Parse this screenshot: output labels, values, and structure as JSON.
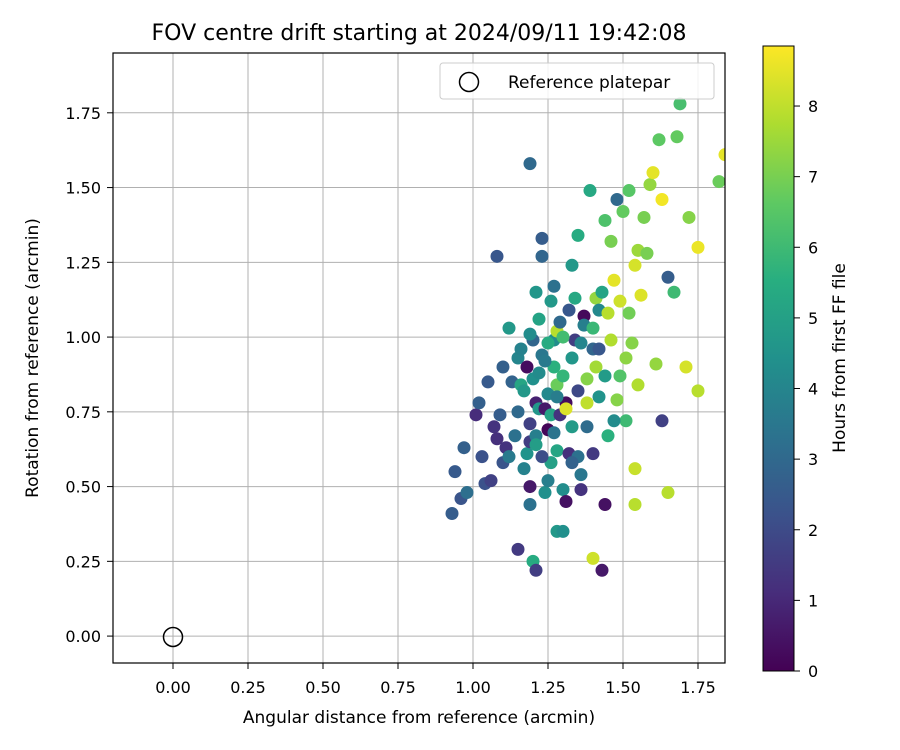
{
  "chart_data": {
    "type": "scatter",
    "title": "FOV centre drift starting at 2024/09/11 19:42:08",
    "xlabel": "Angular distance from reference (arcmin)",
    "ylabel": "Rotation from reference (arcmin)",
    "xlim": [
      -0.2,
      1.84
    ],
    "ylim": [
      -0.09,
      1.95
    ],
    "x_ticks": [
      "0.00",
      "0.25",
      "0.50",
      "0.75",
      "1.00",
      "1.25",
      "1.50",
      "1.75"
    ],
    "y_ticks": [
      "0.00",
      "0.25",
      "0.50",
      "0.75",
      "1.00",
      "1.25",
      "1.50",
      "1.75"
    ],
    "grid": true,
    "legend": {
      "position": "top-right",
      "entries": [
        "Reference platepar"
      ]
    },
    "reference_point": {
      "x": 0.0,
      "y": 0.0,
      "marker": "open-circle"
    },
    "colorbar": {
      "label": "Hours from first FF file",
      "colormap": "viridis",
      "min": 0,
      "max": 8.85,
      "ticks": [
        "0",
        "1",
        "2",
        "3",
        "4",
        "5",
        "6",
        "7",
        "8"
      ]
    },
    "series": [
      {
        "points": [
          [
            0.93,
            0.41,
            2.6
          ],
          [
            0.94,
            0.55,
            2.5
          ],
          [
            0.96,
            0.46,
            2.3
          ],
          [
            0.97,
            0.63,
            2.7
          ],
          [
            0.98,
            0.48,
            3.2
          ],
          [
            1.01,
            0.74,
            1.1
          ],
          [
            1.02,
            0.78,
            2.7
          ],
          [
            1.03,
            0.6,
            2.2
          ],
          [
            1.04,
            0.51,
            2.2
          ],
          [
            1.05,
            0.85,
            2.5
          ],
          [
            1.06,
            0.52,
            1.7
          ],
          [
            1.07,
            0.7,
            1.3
          ],
          [
            1.08,
            0.66,
            1.2
          ],
          [
            1.08,
            1.27,
            2.4
          ],
          [
            1.09,
            0.74,
            2.6
          ],
          [
            1.1,
            0.9,
            2.7
          ],
          [
            1.1,
            0.58,
            2.3
          ],
          [
            1.11,
            0.63,
            1.3
          ],
          [
            1.12,
            0.6,
            3.6
          ],
          [
            1.12,
            1.03,
            4.7
          ],
          [
            1.13,
            0.85,
            2.8
          ],
          [
            1.14,
            0.67,
            3.3
          ],
          [
            1.15,
            0.29,
            1.5
          ],
          [
            1.15,
            0.93,
            4.0
          ],
          [
            1.16,
            0.84,
            5.2
          ],
          [
            1.17,
            0.56,
            3.9
          ],
          [
            1.17,
            0.82,
            4.7
          ],
          [
            1.18,
            0.61,
            4.5
          ],
          [
            1.18,
            0.9,
            0.3
          ],
          [
            1.19,
            0.5,
            0.6
          ],
          [
            1.19,
            1.58,
            3.0
          ],
          [
            1.19,
            0.44,
            3.3
          ],
          [
            1.19,
            0.65,
            1.6
          ],
          [
            1.19,
            0.71,
            1.7
          ],
          [
            1.2,
            0.25,
            5.4
          ],
          [
            1.2,
            0.86,
            4.4
          ],
          [
            1.2,
            0.99,
            2.9
          ],
          [
            1.21,
            0.22,
            1.6
          ],
          [
            1.21,
            0.67,
            3.8
          ],
          [
            1.21,
            0.78,
            0.8
          ],
          [
            1.21,
            1.15,
            4.6
          ],
          [
            1.22,
            0.88,
            4.2
          ],
          [
            1.22,
            1.06,
            5.1
          ],
          [
            1.22,
            0.76,
            4.6
          ],
          [
            1.23,
            1.27,
            2.9
          ],
          [
            1.23,
            1.33,
            2.6
          ],
          [
            1.23,
            0.94,
            3.5
          ],
          [
            1.24,
            0.76,
            0.6
          ],
          [
            1.24,
            0.48,
            4.4
          ],
          [
            1.25,
            0.69,
            0.1
          ],
          [
            1.25,
            0.52,
            3.8
          ],
          [
            1.25,
            0.81,
            4.1
          ],
          [
            1.26,
            1.12,
            4.7
          ],
          [
            1.26,
            0.74,
            5.1
          ],
          [
            1.27,
            1.17,
            3.3
          ],
          [
            1.27,
            0.99,
            4.3
          ],
          [
            1.27,
            0.9,
            5.6
          ],
          [
            1.28,
            1.02,
            7.9
          ],
          [
            1.28,
            0.35,
            4.7
          ],
          [
            1.28,
            0.62,
            5.2
          ],
          [
            1.28,
            0.84,
            6.8
          ],
          [
            1.29,
            0.74,
            1.3
          ],
          [
            1.29,
            1.05,
            3.0
          ],
          [
            1.3,
            0.35,
            4.4
          ],
          [
            1.3,
            0.49,
            4.3
          ],
          [
            1.3,
            0.87,
            5.8
          ],
          [
            1.31,
            0.78,
            0.3
          ],
          [
            1.31,
            0.76,
            8.4
          ],
          [
            1.31,
            0.45,
            0.4
          ],
          [
            1.32,
            0.61,
            1.2
          ],
          [
            1.32,
            1.09,
            2.4
          ],
          [
            1.33,
            1.24,
            4.7
          ],
          [
            1.33,
            0.93,
            4.6
          ],
          [
            1.33,
            0.7,
            4.8
          ],
          [
            1.34,
            0.99,
            1.6
          ],
          [
            1.34,
            1.13,
            5.3
          ],
          [
            1.35,
            0.6,
            3.3
          ],
          [
            1.35,
            1.34,
            5.4
          ],
          [
            1.36,
            0.49,
            1.3
          ],
          [
            1.36,
            0.54,
            3.5
          ],
          [
            1.37,
            1.07,
            0.2
          ],
          [
            1.37,
            1.04,
            3.8
          ],
          [
            1.38,
            0.86,
            7.2
          ],
          [
            1.38,
            0.78,
            8.0
          ],
          [
            1.39,
            1.49,
            5.3
          ],
          [
            1.4,
            0.26,
            8.2
          ],
          [
            1.4,
            0.96,
            2.9
          ],
          [
            1.4,
            1.03,
            5.9
          ],
          [
            1.41,
            1.13,
            7.4
          ],
          [
            1.41,
            0.9,
            7.6
          ],
          [
            1.42,
            0.8,
            4.5
          ],
          [
            1.42,
            1.09,
            4.1
          ],
          [
            1.43,
            0.22,
            0.6
          ],
          [
            1.43,
            1.15,
            5.1
          ],
          [
            1.44,
            0.44,
            0.4
          ],
          [
            1.44,
            1.39,
            6.3
          ],
          [
            1.45,
            1.08,
            7.9
          ],
          [
            1.45,
            0.67,
            5.6
          ],
          [
            1.46,
            0.99,
            7.8
          ],
          [
            1.46,
            1.32,
            7.0
          ],
          [
            1.47,
            1.19,
            8.5
          ],
          [
            1.48,
            0.79,
            7.2
          ],
          [
            1.48,
            1.46,
            3.0
          ],
          [
            1.49,
            1.12,
            8.2
          ],
          [
            1.5,
            1.42,
            6.7
          ],
          [
            1.51,
            0.93,
            7.3
          ],
          [
            1.51,
            0.72,
            6.0
          ],
          [
            1.52,
            1.49,
            6.5
          ],
          [
            1.53,
            0.98,
            7.2
          ],
          [
            1.54,
            1.24,
            8.3
          ],
          [
            1.54,
            0.56,
            8.1
          ],
          [
            1.54,
            0.44,
            7.9
          ],
          [
            1.55,
            1.29,
            7.5
          ],
          [
            1.55,
            0.84,
            7.8
          ],
          [
            1.56,
            1.14,
            8.4
          ],
          [
            1.57,
            1.4,
            7.0
          ],
          [
            1.58,
            1.28,
            7.0
          ],
          [
            1.59,
            1.51,
            7.4
          ],
          [
            1.6,
            1.55,
            8.5
          ],
          [
            1.61,
            0.91,
            7.4
          ],
          [
            1.62,
            1.66,
            6.6
          ],
          [
            1.63,
            0.72,
            1.7
          ],
          [
            1.63,
            1.46,
            8.7
          ],
          [
            1.65,
            1.2,
            2.6
          ],
          [
            1.65,
            0.48,
            7.9
          ],
          [
            1.67,
            1.15,
            6.0
          ],
          [
            1.68,
            1.67,
            6.7
          ],
          [
            1.69,
            1.78,
            6.2
          ],
          [
            1.71,
            0.9,
            8.3
          ],
          [
            1.72,
            1.4,
            7.2
          ],
          [
            1.75,
            1.3,
            8.6
          ],
          [
            1.75,
            0.82,
            7.9
          ],
          [
            1.82,
            1.52,
            6.8
          ],
          [
            1.84,
            1.61,
            8.5
          ],
          [
            1.42,
            0.96,
            2.4
          ],
          [
            1.44,
            0.87,
            4.8
          ],
          [
            1.36,
            0.98,
            4.0
          ],
          [
            1.26,
            0.58,
            5.0
          ],
          [
            1.24,
            0.92,
            3.6
          ],
          [
            1.16,
            0.96,
            3.9
          ],
          [
            1.28,
            0.8,
            3.7
          ],
          [
            1.33,
            0.58,
            2.8
          ],
          [
            1.38,
            0.7,
            3.1
          ],
          [
            1.21,
            0.64,
            4.9
          ],
          [
            1.25,
            0.98,
            5.4
          ],
          [
            1.3,
            1.0,
            6.1
          ],
          [
            1.47,
            0.72,
            4.2
          ],
          [
            1.52,
            1.08,
            6.9
          ],
          [
            1.49,
            0.87,
            6.4
          ],
          [
            1.4,
            0.61,
            1.5
          ],
          [
            1.15,
            0.75,
            3.0
          ],
          [
            1.27,
            0.68,
            3.4
          ],
          [
            1.35,
            0.82,
            1.9
          ],
          [
            1.23,
            0.6,
            2.1
          ],
          [
            1.19,
            1.01,
            4.3
          ]
        ]
      }
    ]
  }
}
